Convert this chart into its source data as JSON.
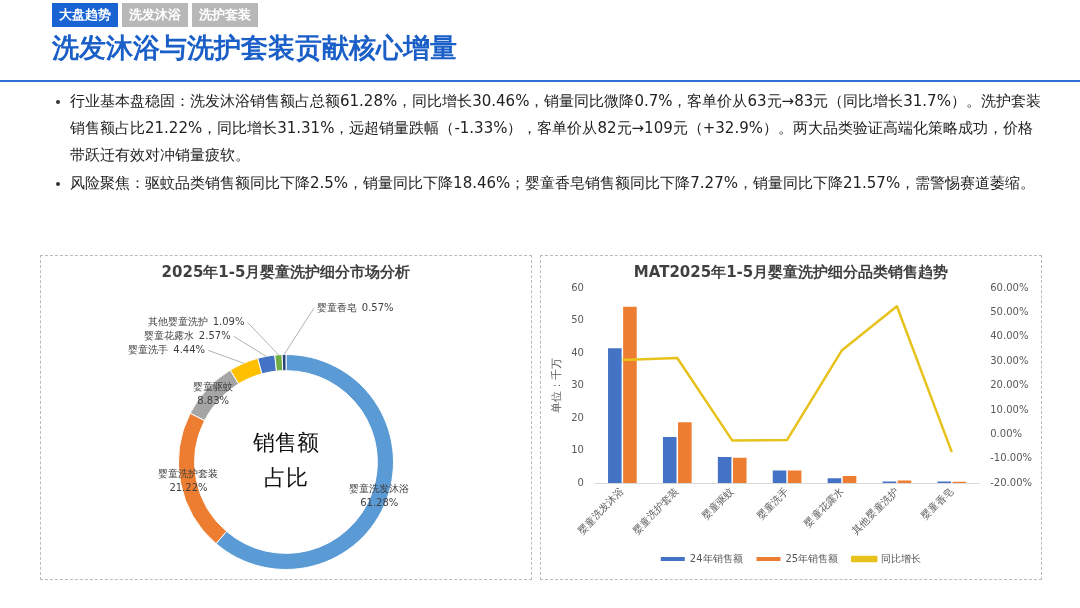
{
  "chart_data": [
    {
      "type": "other",
      "title": "洗发沐浴与洗护套装贡献核心增量",
      "annotations": [
        "大盘趋势",
        "洗发沐浴",
        "洗护套装",
        "行业基本盘稳固：洗发沐浴销售额占总额61.28%，同比增长30.46%，销量同比微降0.7%，客单价从63元→83元（同比增长31.7%）。洗护套装销售额占比21.22%，同比增长31.31%，远超销量跌幅（-1.33%），客单价从82元→109元（+32.9%）。两大品类验证高端化策略成功，价格带跃迁有效对冲销量疲软。",
        "风险聚焦：驱蚊品类销售额同比下降2.5%，销量同比下降18.46%；婴童香皂销售额同比下降7.27%，销量同比下降21.57%，需警惕赛道萎缩。"
      ]
    },
    {
      "type": "donut",
      "title": "2025年1-5月婴童洗护细分市场分析",
      "categories": [
        "婴童洗发沐浴",
        "婴童洗护套装",
        "婴童驱蚊",
        "婴童洗手",
        "婴童花露水",
        "其他婴童洗护",
        "婴童香皂"
      ],
      "values": [
        61.28,
        21.22,
        8.83,
        4.44,
        2.57,
        1.09,
        0.57
      ],
      "colors": [
        "#5b9bd5",
        "#ed7d31",
        "#a5a5a5",
        "#ffc000",
        "#4472c4",
        "#70ad47",
        "#264478"
      ],
      "value_labels": [
        "61.28%",
        "21.22%",
        "8.83%",
        "4.44%",
        "2.57%",
        "1.09%",
        "0.57%"
      ],
      "legend": false,
      "annotations": [
        "销售额占比"
      ]
    },
    {
      "type": "bar",
      "title": "MAT2025年1-5月婴童洗护细分品类销售趋势",
      "ylabel": "单位：千万",
      "categories": [
        "婴童洗发沐浴",
        "婴童洗护套装",
        "婴童驱蚊",
        "婴童洗手",
        "婴童花露水",
        "其他婴童洗护",
        "婴童香皂"
      ],
      "series": [
        {
          "name": "24年销售额",
          "color": "#4472c4",
          "values": [
            41.5,
            14.2,
            8.0,
            3.9,
            1.5,
            0.5,
            0.5
          ]
        },
        {
          "name": "25年销售额",
          "color": "#ed7d31",
          "values": [
            54.2,
            18.7,
            7.8,
            3.9,
            2.2,
            0.8,
            0.4
          ]
        },
        {
          "name": "同比增长",
          "type": "line",
          "axis": "y2",
          "color": "#e8c21c",
          "values": [
            30.5,
            31.3,
            -2.5,
            -2.3,
            34.5,
            52.5,
            -7.3
          ]
        }
      ],
      "ylim": [
        0,
        60
      ],
      "yticks": [
        0,
        10,
        20,
        30,
        40,
        50,
        60
      ],
      "y2lim": [
        -20,
        60
      ],
      "y2ticks": [
        {
          "value": -20,
          "label": "-20.00%"
        },
        {
          "value": -10,
          "label": "-10.00%"
        },
        {
          "value": 0,
          "label": "0.00%"
        },
        {
          "value": 10,
          "label": "10.00%"
        },
        {
          "value": 20,
          "label": "20.00%"
        },
        {
          "value": 30,
          "label": "30.00%"
        },
        {
          "value": 40,
          "label": "40.00%"
        },
        {
          "value": 50,
          "label": "50.00%"
        },
        {
          "value": 60,
          "label": "60.00%"
        }
      ],
      "legend": "bottom",
      "marker": "none",
      "line_style": "solid"
    }
  ]
}
